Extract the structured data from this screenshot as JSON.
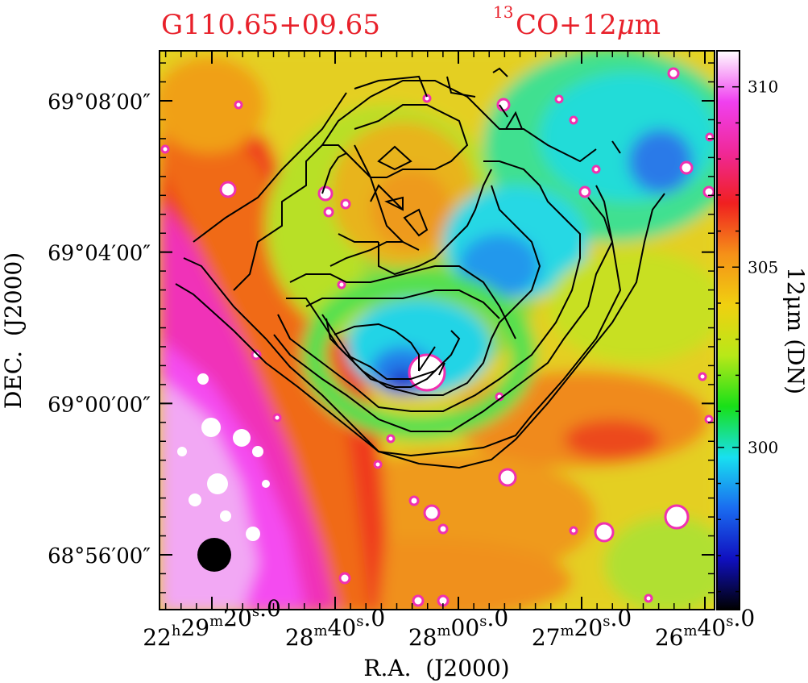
{
  "chart_data": {
    "type": "heatmap",
    "title_left": "G110.65+09.65",
    "title_right_sup": "13",
    "title_right_main": "CO+12",
    "title_right_mu": "μ",
    "title_right_end": "m",
    "xlabel": "R.A.  (J2000)",
    "ylabel": "DEC.  (J2000)",
    "colorbar_label": "12μm (DN)",
    "colorbar_range": [
      295.5,
      311
    ],
    "colorbar_ticks": [
      {
        "value": 300,
        "label": "300"
      },
      {
        "value": 305,
        "label": "305"
      },
      {
        "value": 310,
        "label": "310"
      }
    ],
    "x_ticks": [
      {
        "h": "22",
        "m": "29",
        "s": "20",
        "frac": "0"
      },
      {
        "h": "",
        "m": "28",
        "s": "40",
        "frac": "0"
      },
      {
        "h": "",
        "m": "28",
        "s": "00",
        "frac": "0"
      },
      {
        "h": "",
        "m": "27",
        "s": "20",
        "frac": "0"
      },
      {
        "h": "",
        "m": "26",
        "s": "40",
        "frac": "0"
      }
    ],
    "y_ticks": [
      "69°08′00″",
      "69°04′00″",
      "69°00′00″",
      "68°56′00″"
    ],
    "colormap": [
      "#000000",
      "#1010c0",
      "#1a6cf0",
      "#18e0f0",
      "#18e018",
      "#b8e818",
      "#f0d010",
      "#f59018",
      "#f02020",
      "#f02898",
      "#f040f0",
      "#ffffff"
    ],
    "contour_color": "#000000",
    "beam": "filled black circle, lower-left corner",
    "title_color": "#e8212b"
  }
}
